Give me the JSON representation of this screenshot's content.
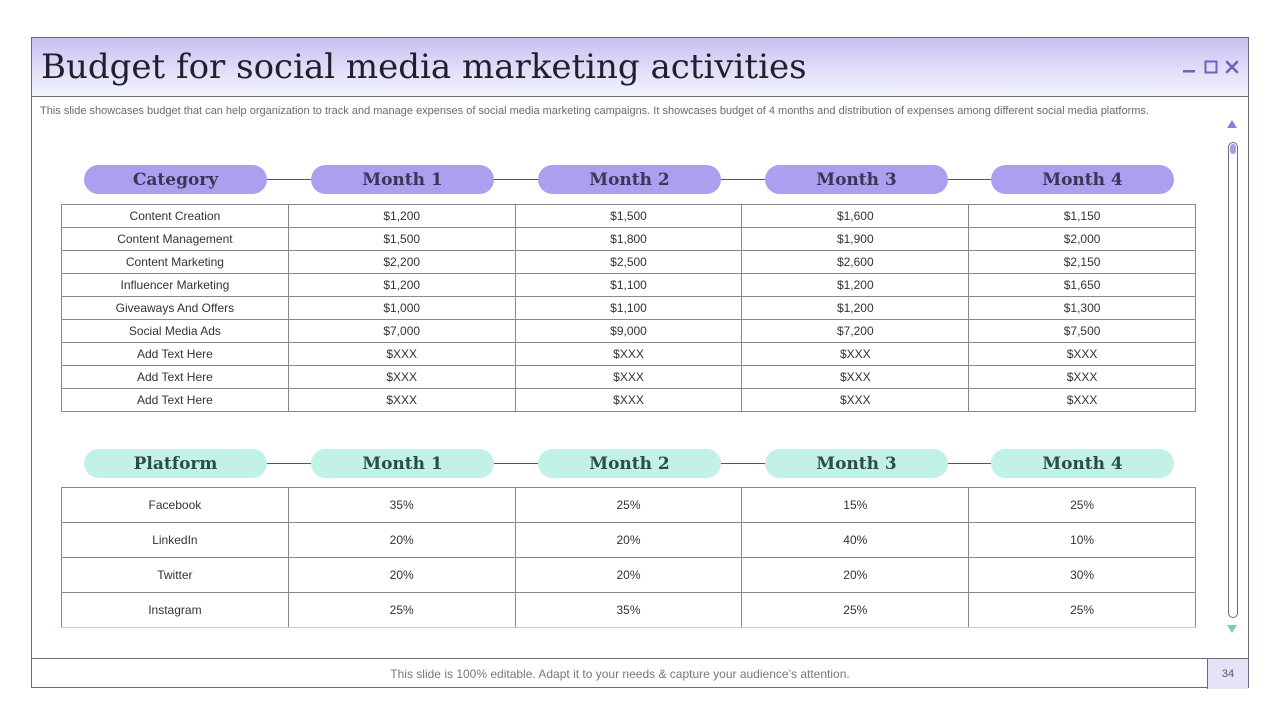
{
  "slide": {
    "title": "Budget for social media marketing activities",
    "subtitle": "This slide showcases budget that can help organization to track and manage expenses of social media marketing campaigns. It showcases budget of 4 months and distribution of expenses among different social media platforms.",
    "footer": "This slide is 100% editable. Adapt it to your needs & capture your audience’s attention.",
    "page_number": "34"
  },
  "colors": {
    "accent_purple": "#ab9ff0",
    "accent_mint": "#c2f1e7"
  },
  "icons": {
    "minimize": "minimize-icon",
    "maximize": "maximize-icon",
    "close": "close-icon"
  },
  "budget_table": {
    "headers": [
      "Category",
      "Month 1",
      "Month 2",
      "Month 3",
      "Month 4"
    ],
    "rows": [
      [
        "Content Creation",
        "$1,200",
        "$1,500",
        "$1,600",
        "$1,150"
      ],
      [
        "Content Management",
        "$1,500",
        "$1,800",
        "$1,900",
        "$2,000"
      ],
      [
        "Content Marketing",
        "$2,200",
        "$2,500",
        "$2,600",
        "$2,150"
      ],
      [
        "Influencer Marketing",
        "$1,200",
        "$1,100",
        "$1,200",
        "$1,650"
      ],
      [
        "Giveaways And Offers",
        "$1,000",
        "$1,100",
        "$1,200",
        "$1,300"
      ],
      [
        "Social Media Ads",
        "$7,000",
        "$9,000",
        "$7,200",
        "$7,500"
      ],
      [
        "Add Text Here",
        "$XXX",
        "$XXX",
        "$XXX",
        "$XXX"
      ],
      [
        "Add Text Here",
        "$XXX",
        "$XXX",
        "$XXX",
        "$XXX"
      ],
      [
        "Add Text Here",
        "$XXX",
        "$XXX",
        "$XXX",
        "$XXX"
      ]
    ]
  },
  "platform_table": {
    "headers": [
      "Platform",
      "Month 1",
      "Month 2",
      "Month 3",
      "Month 4"
    ],
    "rows": [
      [
        "Facebook",
        "35%",
        "25%",
        "15%",
        "25%"
      ],
      [
        "LinkedIn",
        "20%",
        "20%",
        "40%",
        "10%"
      ],
      [
        "Twitter",
        "20%",
        "20%",
        "20%",
        "30%"
      ],
      [
        "Instagram",
        "25%",
        "35%",
        "25%",
        "25%"
      ]
    ]
  }
}
